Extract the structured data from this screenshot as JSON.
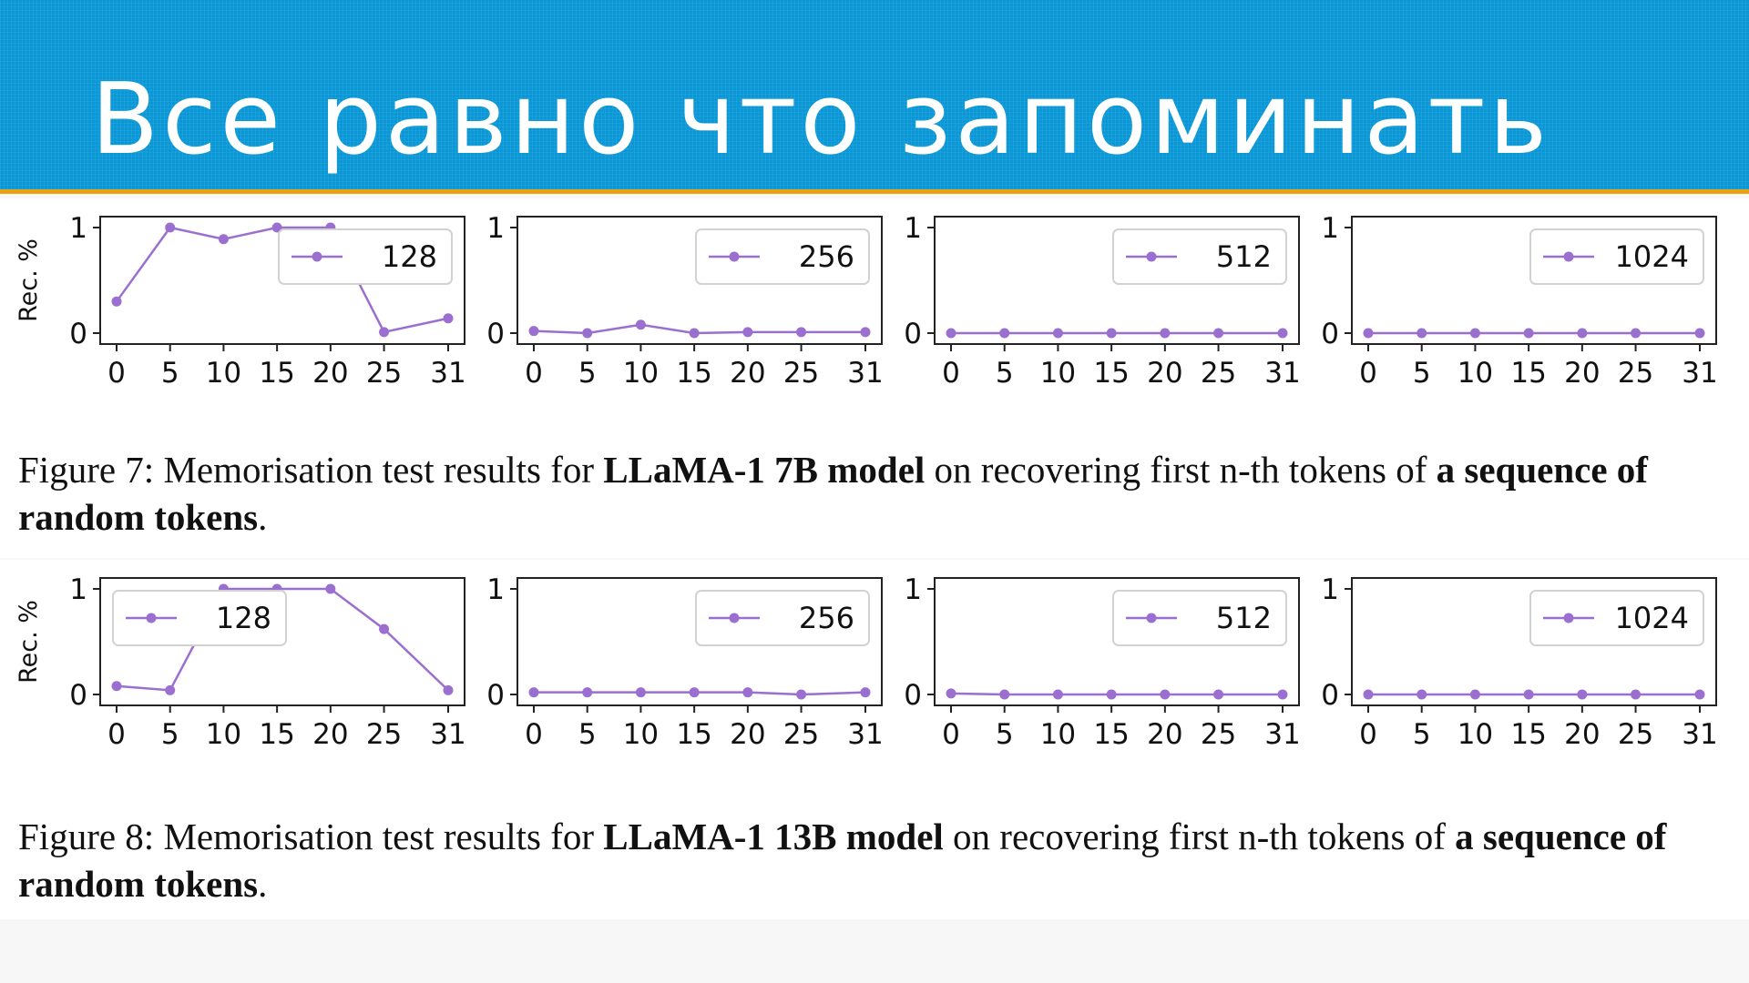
{
  "slide": {
    "title": "Все равно что запоминать"
  },
  "colors": {
    "header_bg": "#0a97d6",
    "header_stripe": "#e9a312",
    "series": "#9b6fcf"
  },
  "figures": [
    {
      "caption": {
        "label": "Figure 7:",
        "text_1": " Memorisation test results for ",
        "bold_1": "LLaMA-1 7B model",
        "text_2": " on recovering first n-th tokens of ",
        "bold_2": "a sequence of random tokens",
        "text_3": "."
      }
    },
    {
      "caption": {
        "label": "Figure 8:",
        "text_1": " Memorisation test results for ",
        "bold_1": "LLaMA-1 13B model",
        "text_2": " on recovering first n-th tokens of ",
        "bold_2": "a sequence of random tokens",
        "text_3": "."
      }
    }
  ],
  "chart_data": [
    {
      "type": "line",
      "figure": 7,
      "panel": 1,
      "ylabel": "Rec. %",
      "x": [
        0,
        5,
        10,
        15,
        20,
        25,
        31
      ],
      "x_tick_labels": [
        "0",
        "5",
        "10",
        "15",
        "20",
        "25",
        "31"
      ],
      "y_tick_labels": [
        "0",
        "1"
      ],
      "ylim": [
        0,
        1
      ],
      "legend_position": "top-right",
      "series": [
        {
          "name": "128",
          "values": [
            0.3,
            1.0,
            0.89,
            1.0,
            1.0,
            0.01,
            0.14
          ]
        }
      ]
    },
    {
      "type": "line",
      "figure": 7,
      "panel": 2,
      "ylabel": "",
      "x": [
        0,
        5,
        10,
        15,
        20,
        25,
        31
      ],
      "x_tick_labels": [
        "0",
        "5",
        "10",
        "15",
        "20",
        "25",
        "31"
      ],
      "y_tick_labels": [
        "0",
        "1"
      ],
      "ylim": [
        0,
        1
      ],
      "legend_position": "top-right",
      "series": [
        {
          "name": "256",
          "values": [
            0.02,
            0.0,
            0.08,
            0.0,
            0.01,
            0.01,
            0.01
          ]
        }
      ]
    },
    {
      "type": "line",
      "figure": 7,
      "panel": 3,
      "ylabel": "",
      "x": [
        0,
        5,
        10,
        15,
        20,
        25,
        31
      ],
      "x_tick_labels": [
        "0",
        "5",
        "10",
        "15",
        "20",
        "25",
        "31"
      ],
      "y_tick_labels": [
        "0",
        "1"
      ],
      "ylim": [
        0,
        1
      ],
      "legend_position": "top-right",
      "series": [
        {
          "name": "512",
          "values": [
            0,
            0,
            0,
            0,
            0,
            0,
            0
          ]
        }
      ]
    },
    {
      "type": "line",
      "figure": 7,
      "panel": 4,
      "ylabel": "",
      "x": [
        0,
        5,
        10,
        15,
        20,
        25,
        31
      ],
      "x_tick_labels": [
        "0",
        "5",
        "10",
        "15",
        "20",
        "25",
        "31"
      ],
      "y_tick_labels": [
        "0",
        "1"
      ],
      "ylim": [
        0,
        1
      ],
      "legend_position": "top-right",
      "series": [
        {
          "name": "1024",
          "values": [
            0,
            0,
            0,
            0,
            0,
            0,
            0
          ]
        }
      ]
    },
    {
      "type": "line",
      "figure": 8,
      "panel": 1,
      "ylabel": "Rec. %",
      "x": [
        0,
        5,
        10,
        15,
        20,
        25,
        31
      ],
      "x_tick_labels": [
        "0",
        "5",
        "10",
        "15",
        "20",
        "25",
        "31"
      ],
      "y_tick_labels": [
        "0",
        "1"
      ],
      "ylim": [
        0,
        1
      ],
      "legend_position": "top-left",
      "series": [
        {
          "name": "128",
          "values": [
            0.08,
            0.04,
            1.0,
            1.0,
            1.0,
            0.62,
            0.04
          ]
        }
      ]
    },
    {
      "type": "line",
      "figure": 8,
      "panel": 2,
      "ylabel": "",
      "x": [
        0,
        5,
        10,
        15,
        20,
        25,
        31
      ],
      "x_tick_labels": [
        "0",
        "5",
        "10",
        "15",
        "20",
        "25",
        "31"
      ],
      "y_tick_labels": [
        "0",
        "1"
      ],
      "ylim": [
        0,
        1
      ],
      "legend_position": "top-right",
      "series": [
        {
          "name": "256",
          "values": [
            0.02,
            0.02,
            0.02,
            0.02,
            0.02,
            0.0,
            0.02
          ]
        }
      ]
    },
    {
      "type": "line",
      "figure": 8,
      "panel": 3,
      "ylabel": "",
      "x": [
        0,
        5,
        10,
        15,
        20,
        25,
        31
      ],
      "x_tick_labels": [
        "0",
        "5",
        "10",
        "15",
        "20",
        "25",
        "31"
      ],
      "y_tick_labels": [
        "0",
        "1"
      ],
      "ylim": [
        0,
        1
      ],
      "legend_position": "top-right",
      "series": [
        {
          "name": "512",
          "values": [
            0.01,
            0,
            0,
            0,
            0,
            0,
            0
          ]
        }
      ]
    },
    {
      "type": "line",
      "figure": 8,
      "panel": 4,
      "ylabel": "",
      "x": [
        0,
        5,
        10,
        15,
        20,
        25,
        31
      ],
      "x_tick_labels": [
        "0",
        "5",
        "10",
        "15",
        "20",
        "25",
        "31"
      ],
      "y_tick_labels": [
        "0",
        "1"
      ],
      "ylim": [
        0,
        1
      ],
      "legend_position": "top-right",
      "series": [
        {
          "name": "1024",
          "values": [
            0,
            0,
            0,
            0,
            0,
            0,
            0
          ]
        }
      ]
    }
  ]
}
